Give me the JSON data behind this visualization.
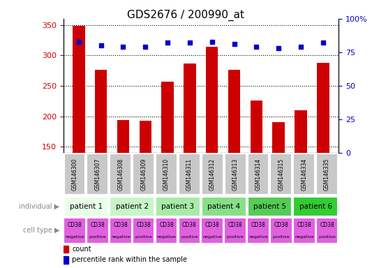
{
  "title": "GDS2676 / 200990_at",
  "samples": [
    "GSM146300",
    "GSM146307",
    "GSM146308",
    "GSM146309",
    "GSM146310",
    "GSM146311",
    "GSM146312",
    "GSM146313",
    "GSM146314",
    "GSM146315",
    "GSM146334",
    "GSM146335"
  ],
  "counts": [
    348,
    276,
    194,
    193,
    257,
    287,
    314,
    276,
    226,
    190,
    210,
    288
  ],
  "percentile_ranks": [
    83,
    80,
    79,
    79,
    82,
    82,
    83,
    81,
    79,
    78,
    79,
    82
  ],
  "ylim_left": [
    140,
    360
  ],
  "ylim_right": [
    0,
    100
  ],
  "yticks_left": [
    150,
    200,
    250,
    300,
    350
  ],
  "yticks_right": [
    0,
    25,
    50,
    75,
    100
  ],
  "patients": [
    {
      "label": "patient 1",
      "cols": [
        0,
        1
      ],
      "color": "#e8ffe8"
    },
    {
      "label": "patient 2",
      "cols": [
        2,
        3
      ],
      "color": "#c8f5c8"
    },
    {
      "label": "patient 3",
      "cols": [
        4,
        5
      ],
      "color": "#a8eba8"
    },
    {
      "label": "patient 4",
      "cols": [
        6,
        7
      ],
      "color": "#88df88"
    },
    {
      "label": "patient 5",
      "cols": [
        8,
        9
      ],
      "color": "#55cc55"
    },
    {
      "label": "patient 6",
      "cols": [
        10,
        11
      ],
      "color": "#33cc33"
    }
  ],
  "cell_types": [
    "negative",
    "positive",
    "negative",
    "positive",
    "negative",
    "positive",
    "negative",
    "positive",
    "negative",
    "positive",
    "negative",
    "positive"
  ],
  "cell_label": "CD38",
  "bar_color": "#cc0000",
  "dot_color": "#0000cc",
  "axis_color_left": "#cc0000",
  "axis_color_right": "#0000cc",
  "sample_bg_color": "#c8c8c8",
  "cell_neg_color": "#e060e0",
  "cell_pos_color": "#dd55dd",
  "title_fontsize": 11,
  "tick_fontsize": 8,
  "sample_fontsize": 5.5,
  "patient_fontsize": 7.5,
  "cell_fontsize": 5.5,
  "cell_sub_fontsize": 4.5,
  "legend_fontsize": 7,
  "side_label_fontsize": 7
}
